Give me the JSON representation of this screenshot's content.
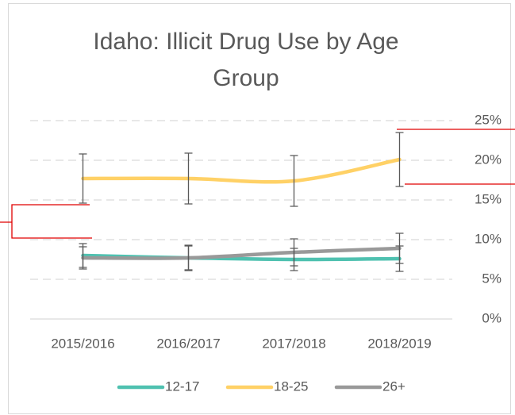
{
  "chart_data": {
    "type": "line",
    "title": "Idaho: Illicit Drug Use by Age Group",
    "categories": [
      "2015/2016",
      "2016/2017",
      "2017/2018",
      "2018/2019"
    ],
    "series": [
      {
        "name": "12-17",
        "color": "#4fc1b0",
        "values": [
          8.0,
          7.7,
          7.5,
          7.6
        ],
        "errors": [
          1.5,
          1.5,
          1.4,
          1.6
        ]
      },
      {
        "name": "18-25",
        "color": "#ffd166",
        "values": [
          17.7,
          17.7,
          17.4,
          20.1
        ],
        "errors": [
          3.1,
          3.2,
          3.2,
          3.4
        ]
      },
      {
        "name": "26+",
        "color": "#999999",
        "values": [
          7.7,
          7.7,
          8.4,
          8.9
        ],
        "errors": [
          1.4,
          1.6,
          1.7,
          1.9
        ]
      }
    ],
    "ylim": [
      0,
      25
    ],
    "yticks": [
      {
        "value": 0,
        "label": "0%"
      },
      {
        "value": 5,
        "label": "5%"
      },
      {
        "value": 10,
        "label": "10%"
      },
      {
        "value": 15,
        "label": "15%"
      },
      {
        "value": 20,
        "label": "20%"
      },
      {
        "value": 25,
        "label": "25%"
      }
    ],
    "grid": true,
    "legend": "bottom"
  }
}
